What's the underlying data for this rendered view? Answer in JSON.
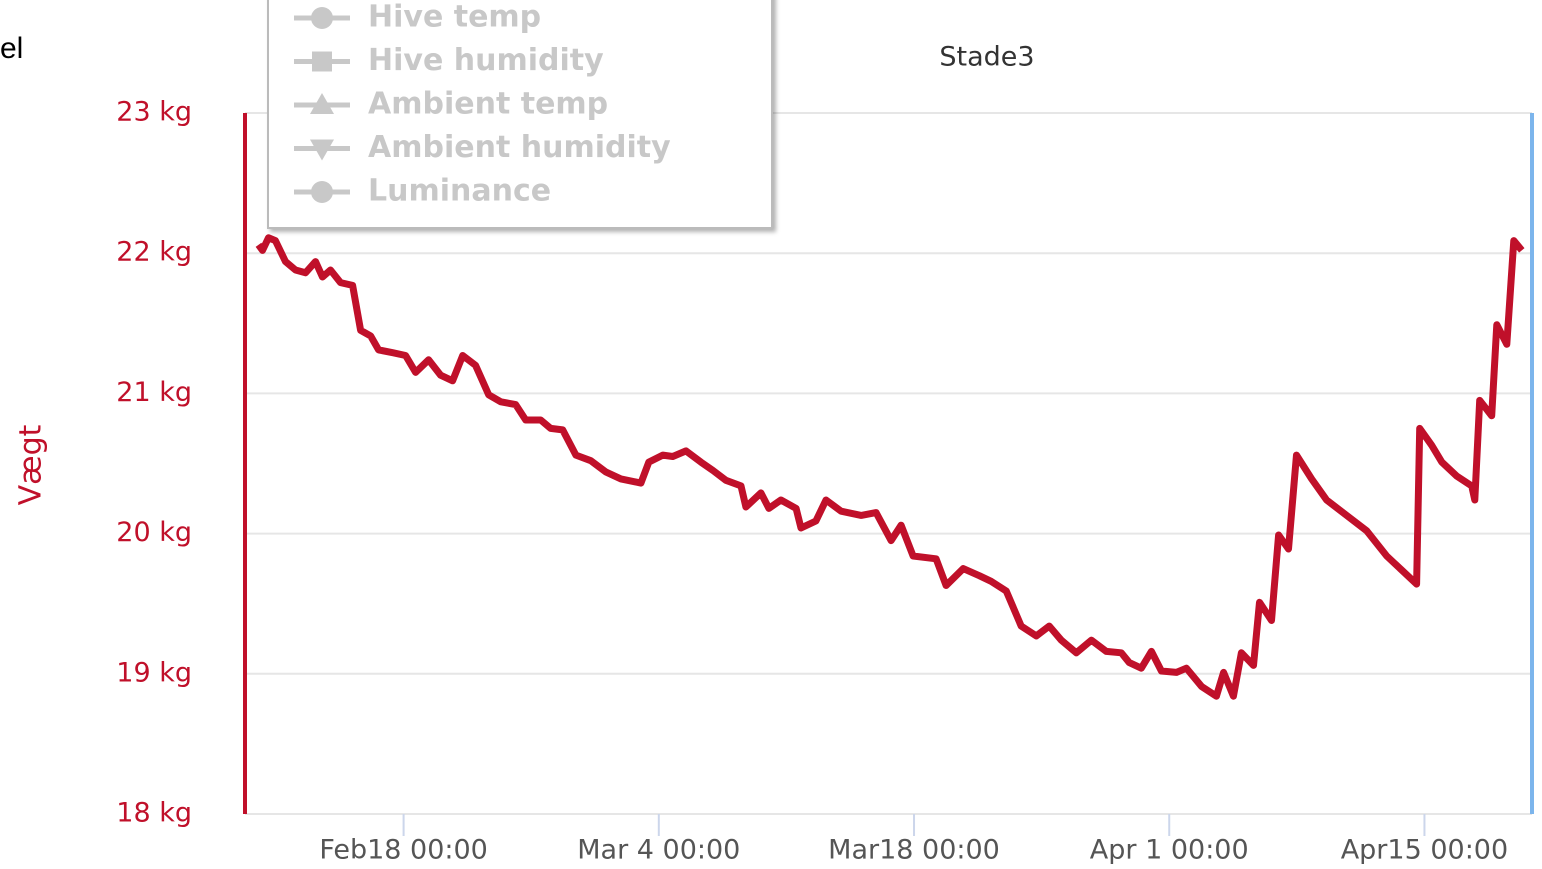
{
  "fragment": "el",
  "chart_data": {
    "type": "line",
    "title": "Stade3",
    "y_label": "Vægt",
    "legend_items": [
      "Hive temp",
      "Hive humidity",
      "Ambient temp",
      "Ambient humidity",
      "Luminance"
    ],
    "legend_markers": [
      "circle",
      "square",
      "triangle",
      "triangle-down",
      "circle"
    ],
    "legend_color": "#c8c8c8",
    "grid": true,
    "ylim": [
      18,
      23
    ],
    "yticks": [
      {
        "value": 18,
        "label": "18 kg"
      },
      {
        "value": 19,
        "label": "19 kg"
      },
      {
        "value": 20,
        "label": "20 kg"
      },
      {
        "value": 21,
        "label": "21 kg"
      },
      {
        "value": 22,
        "label": "22 kg"
      },
      {
        "value": 23,
        "label": "23 kg"
      }
    ],
    "xlim": [
      40.3,
      110.9
    ],
    "xticks": [
      {
        "value": 49,
        "label": "Feb18 00:00"
      },
      {
        "value": 63,
        "label": "Mar 4 00:00"
      },
      {
        "value": 77,
        "label": "Mar18 00:00"
      },
      {
        "value": 91,
        "label": "Apr 1 00:00"
      },
      {
        "value": 105,
        "label": "Apr15 00:00"
      }
    ],
    "axis_color": "#c0102a",
    "y2_axis_color": "#7cb5ec",
    "series": [
      {
        "color": "#c0102a",
        "x": [
          41.04,
          41.26,
          41.59,
          41.97,
          42.52,
          43.07,
          43.62,
          44.17,
          44.55,
          44.99,
          45.54,
          46.2,
          46.64,
          47.19,
          47.63,
          48.4,
          49.11,
          49.66,
          50.37,
          51.03,
          51.69,
          52.24,
          52.95,
          53.67,
          54.33,
          55.15,
          55.7,
          56.52,
          57.07,
          57.73,
          58.45,
          59.27,
          60.09,
          60.92,
          62.02,
          62.45,
          63.22,
          63.77,
          64.49,
          65.31,
          65.97,
          66.68,
          67.51,
          67.78,
          68.6,
          69.04,
          69.7,
          70.53,
          70.8,
          71.62,
          72.17,
          73,
          74.1,
          74.92,
          75.74,
          76.29,
          76.95,
          78.21,
          78.76,
          79.7,
          80.58,
          81.23,
          82.06,
          82.88,
          83.71,
          84.42,
          85.08,
          85.9,
          86.73,
          87.55,
          88.37,
          88.81,
          89.47,
          90.02,
          90.57,
          91.4,
          91.94,
          92.77,
          93.59,
          93.98,
          94.52,
          94.96,
          95.62,
          95.95,
          96.61,
          97,
          97.54,
          97.98,
          98.81,
          99.63,
          100.73,
          101.83,
          102.93,
          103.75,
          104.57,
          104.74,
          105.4,
          105.95,
          106.77,
          107.59,
          107.76,
          108.03,
          108.69,
          108.97,
          109.52,
          109.9,
          110.34
        ],
        "values": [
          22.06,
          22.02,
          22.11,
          22.09,
          21.94,
          21.88,
          21.86,
          21.94,
          21.83,
          21.88,
          21.79,
          21.77,
          21.45,
          21.41,
          21.31,
          21.29,
          21.27,
          21.15,
          21.24,
          21.13,
          21.09,
          21.27,
          21.2,
          20.99,
          20.94,
          20.92,
          20.81,
          20.81,
          20.75,
          20.74,
          20.56,
          20.52,
          20.44,
          20.39,
          20.36,
          20.51,
          20.56,
          20.55,
          20.59,
          20.51,
          20.45,
          20.38,
          20.34,
          20.19,
          20.29,
          20.18,
          20.24,
          20.18,
          20.04,
          20.09,
          20.24,
          20.16,
          20.13,
          20.15,
          19.95,
          20.06,
          19.84,
          19.82,
          19.63,
          19.75,
          19.7,
          19.66,
          19.59,
          19.34,
          19.27,
          19.34,
          19.24,
          19.15,
          19.24,
          19.16,
          19.15,
          19.08,
          19.04,
          19.16,
          19.02,
          19.01,
          19.04,
          18.91,
          18.84,
          19.01,
          18.84,
          19.15,
          19.06,
          19.51,
          19.38,
          19.99,
          19.89,
          20.56,
          20.39,
          20.24,
          20.13,
          20.02,
          19.84,
          19.74,
          19.64,
          20.75,
          20.63,
          20.51,
          20.41,
          20.34,
          20.24,
          20.95,
          20.84,
          21.49,
          21.35,
          22.09,
          22.02
        ]
      }
    ]
  }
}
